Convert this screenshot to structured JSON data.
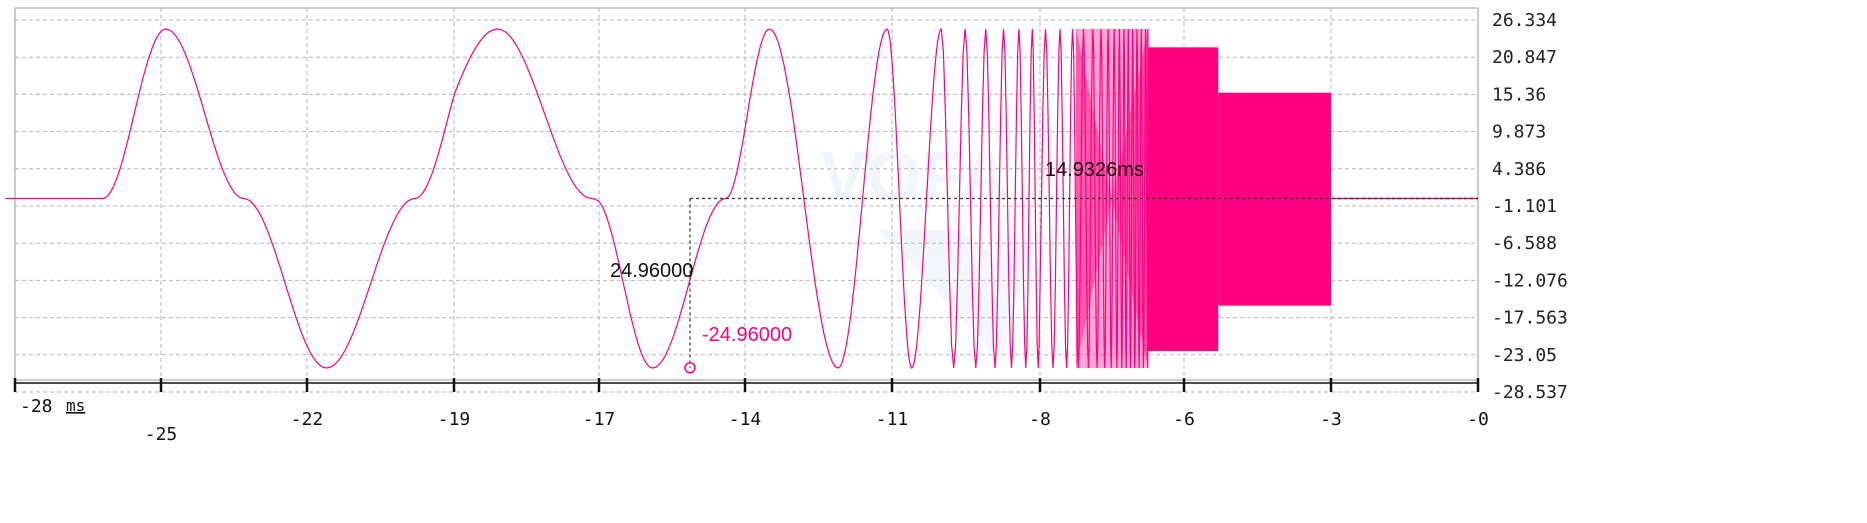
{
  "chart_data": {
    "type": "line",
    "x_unit": "ms",
    "xlim": [
      -29,
      0
    ],
    "ylim": [
      -28.537,
      26.334
    ],
    "x_ticks": [
      -28,
      -25,
      -22,
      -19,
      -17,
      -14,
      -11,
      -8,
      -6,
      -3,
      0
    ],
    "x_tick_labels": [
      "-28",
      "-25",
      "-22",
      "-19",
      "-17",
      "-14",
      "-11",
      "-8",
      "-6",
      "-3",
      "-0"
    ],
    "y_ticks": [
      26.334,
      20.847,
      15.36,
      9.873,
      4.386,
      -1.101,
      -6.588,
      -12.076,
      -17.563,
      -23.05,
      -28.537
    ],
    "y_tick_labels": [
      "26.334",
      "20.847",
      "15.36",
      "9.873",
      "4.386",
      "-1.101",
      "-6.588",
      "-12.076",
      "-17.563",
      "-23.05",
      "-28.537"
    ],
    "grid": true,
    "series": [
      {
        "color": "#ff0080",
        "description_points": {
          "flat_start_x": -28.2,
          "flat_end_x": -26.2,
          "sweep_points_x": [
            -26.2,
            -24.9,
            -23.3,
            -21.6,
            -19.8,
            -18.4,
            -17.1,
            -15.9,
            -14.4,
            -13.5,
            -12.1,
            -11.1,
            -10.6,
            -10.0
          ],
          "sweep_points_y": [
            0,
            25.0,
            0,
            -25.0,
            0,
            25.0,
            0,
            -25.0,
            0,
            25.0,
            -25.0,
            25.0,
            -25.0,
            25.0
          ],
          "dense_band_until_x": -6.5,
          "block_1": {
            "x": [
              -6.5,
              -5.3
            ],
            "y": [
              -22.5,
              22.3
            ]
          },
          "block_2": {
            "x": [
              -5.3,
              -3.0
            ],
            "y": [
              -15.8,
              15.6
            ]
          },
          "flat_end": {
            "x": [
              -3.0,
              0
            ],
            "y": 0
          }
        }
      }
    ],
    "annotations": {
      "cursor_time_label": "14.9326ms",
      "delta_label": "24.96000",
      "point_label": "-24.96000",
      "point_x": -15.1,
      "point_y": -24.96,
      "cursor_y": 0
    }
  }
}
